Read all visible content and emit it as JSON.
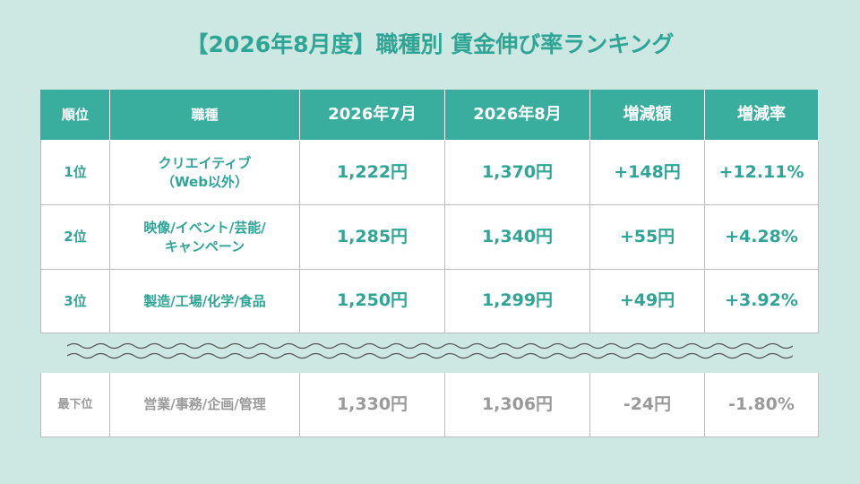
{
  "title": "【2026年8月度】職種別 賃金伸び率ランキング",
  "table": {
    "header": [
      "順位",
      "職種",
      "2026年7月",
      "2026年8月",
      "増減額",
      "増減率"
    ],
    "rows": [
      [
        "1位",
        "クリエイティブ\n（Web以外）",
        "1,222円",
        "1,370円",
        "+148円",
        "+12.11%"
      ],
      [
        "2位",
        "映像/イベント/芸能/\nキャンペーン",
        "1,285円",
        "1,340円",
        "+55円",
        "+4.28%"
      ],
      [
        "3位",
        "製造/工場/化学/食品",
        "1,250円",
        "1,299円",
        "+49円",
        "+3.92%"
      ]
    ]
  },
  "bottom": {
    "row": [
      "最下位",
      "営業/事務/企画/管理",
      "1,330円",
      "1,306円",
      "-24円",
      "-1.80%"
    ]
  }
}
